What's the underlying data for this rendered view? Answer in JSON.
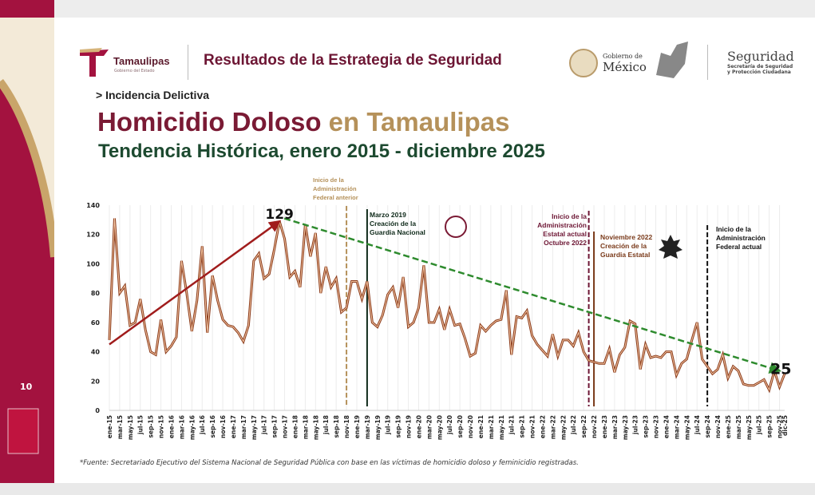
{
  "header": {
    "brand": "Tamaulipas",
    "brand_sub": "Gobierno del Estado",
    "title": "Resultados de la Estrategia de Seguridad",
    "gob_line1": "Gobierno de",
    "gob_line2": "México",
    "seg_title": "Seguridad",
    "seg_sub1": "Secretaría de Seguridad",
    "seg_sub2": "y Protección Ciudadana"
  },
  "section": "> Incidencia Delictiva",
  "title_part1": "Homicidio Doloso",
  "title_part2": " en Tamaulipas",
  "subtitle": "Tendencia Histórica, enero 2015 - diciembre 2025",
  "page_number": "10",
  "footnote": "*Fuente: Secretariado Ejecutivo del Sistema Nacional de Seguridad Pública con base en las víctimas de homicidio doloso y feminicidio registradas.",
  "colors": {
    "line": "#e07a3a",
    "maroon": "#7a1a34",
    "gold": "#b5915a",
    "green_trend": "#2e8b2e",
    "red_trend": "#a01c1c"
  },
  "chart_data": {
    "type": "line",
    "ylim": [
      0,
      140
    ],
    "yticks": [
      0,
      20,
      40,
      60,
      80,
      100,
      120,
      140
    ],
    "grid": "vertical",
    "x_labels": [
      "ene-15",
      "mar-15",
      "may-15",
      "jul-15",
      "sep-15",
      "nov-15",
      "ene-16",
      "mar-16",
      "may-16",
      "jul-16",
      "sep-16",
      "nov-16",
      "ene-17",
      "mar-17",
      "may-17",
      "jul-17",
      "sep-17",
      "nov-17",
      "ene-18",
      "mar-18",
      "may-18",
      "jul-18",
      "sep-18",
      "nov-18",
      "ene-19",
      "mar-19",
      "may-19",
      "jul-19",
      "sep-19",
      "nov-19",
      "ene-20",
      "mar-20",
      "may-20",
      "jul-20",
      "sep-20",
      "nov-20",
      "ene-21",
      "mar-21",
      "may-21",
      "jul-21",
      "sep-21",
      "nov-21",
      "ene-22",
      "mar-22",
      "may-22",
      "jul-22",
      "sep-22",
      "nov-22",
      "ene-23",
      "mar-23",
      "may-23",
      "jul-23",
      "sep-23",
      "nov-23",
      "ene-24",
      "mar-24",
      "may-24",
      "jul-24",
      "sep-24",
      "nov-24",
      "ene-25",
      "mar-25",
      "may-25",
      "jul-25",
      "sep-25",
      "nov-25",
      "dic-25"
    ],
    "values": [
      48,
      131,
      80,
      85,
      58,
      60,
      76,
      55,
      40,
      38,
      62,
      40,
      44,
      50,
      102,
      80,
      54,
      75,
      112,
      53,
      92,
      75,
      62,
      58,
      57,
      53,
      47,
      58,
      102,
      107,
      90,
      93,
      110,
      129,
      117,
      91,
      95,
      84,
      127,
      105,
      121,
      80,
      98,
      84,
      90,
      67,
      70,
      88,
      88,
      76,
      88,
      60,
      57,
      65,
      79,
      84,
      70,
      91,
      57,
      60,
      70,
      99,
      60,
      60,
      69,
      55,
      69,
      58,
      59,
      49,
      37,
      39,
      58,
      54,
      58,
      61,
      62,
      82,
      38,
      64,
      63,
      68,
      51,
      45,
      41,
      37,
      52,
      37,
      48,
      48,
      44,
      53,
      40,
      34,
      33,
      32,
      32,
      42,
      26,
      38,
      43,
      61,
      59,
      28,
      45,
      36,
      37,
      36,
      40,
      40,
      24,
      32,
      35,
      48,
      60,
      35,
      30,
      25,
      28,
      38,
      22,
      30,
      27,
      18,
      17,
      17,
      19,
      21,
      14,
      27,
      16,
      25
    ],
    "trend_up": {
      "from_month": "ene-15",
      "from_value": 45,
      "to_month": "oct-17",
      "to_value": 129
    },
    "trend_down": {
      "from_month": "oct-17",
      "from_value": 131,
      "to_month": "nov-25",
      "to_value": 27
    },
    "peak_label": "129",
    "end_label": "25",
    "annotations": [
      {
        "month": "nov-18",
        "index": 46,
        "style": "dashed",
        "color": "#b5915a",
        "text": [
          "Inicio de la",
          "Administración",
          "Federal anterior"
        ]
      },
      {
        "month": "mar-19",
        "index": 50,
        "style": "solid",
        "color": "#0f2a1a",
        "text": [
          "Marzo 2019",
          "Creación de la",
          "Guardia Nacional"
        ]
      },
      {
        "month": "oct-22",
        "index": 93,
        "style": "dashed",
        "color": "#6d1634",
        "text": [
          "Inicio de la",
          "Administración",
          "Estatal actual",
          "Octubre 2022"
        ]
      },
      {
        "month": "nov-22",
        "index": 94,
        "style": "solid",
        "color": "#7a3a1a",
        "text": [
          "Noviembre 2022",
          "Creación de la",
          "Guardia Estatal"
        ]
      },
      {
        "month": "oct-24",
        "index": 116,
        "style": "dashed",
        "color": "#111111",
        "text": [
          "Inicio de la",
          "Administración",
          "Federal actual"
        ]
      }
    ]
  }
}
